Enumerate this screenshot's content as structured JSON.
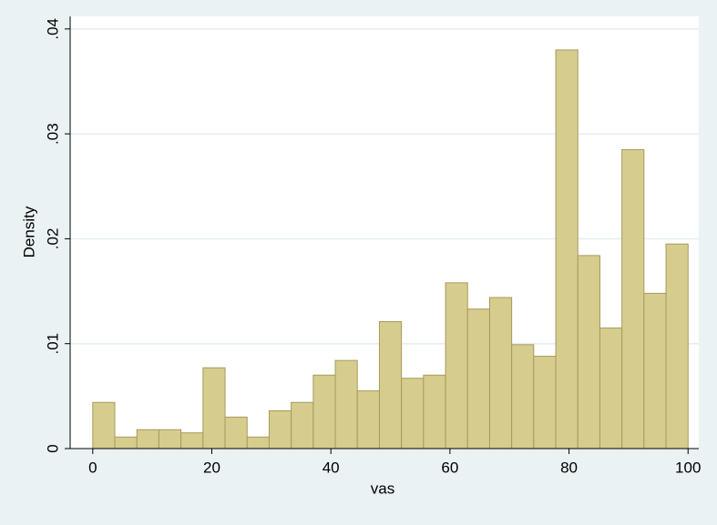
{
  "chart_data": {
    "type": "histogram",
    "x_label": "vas",
    "y_label": "Density",
    "bins": [
      0,
      3.7,
      7.41,
      11.11,
      14.81,
      18.52,
      22.22,
      25.93,
      29.63,
      33.33,
      37.04,
      40.74,
      44.44,
      48.15,
      51.85,
      55.56,
      59.26,
      62.96,
      66.67,
      70.37,
      74.07,
      77.78,
      81.48,
      85.19,
      88.89,
      92.59,
      96.3,
      100
    ],
    "values": [
      0.0044,
      0.0011,
      0.0018,
      0.0018,
      0.0015,
      0.0077,
      0.003,
      0.0011,
      0.0036,
      0.0044,
      0.007,
      0.0084,
      0.0055,
      0.0121,
      0.0067,
      0.007,
      0.0158,
      0.0133,
      0.0144,
      0.0099,
      0.0088,
      0.038,
      0.0184,
      0.0115,
      0.0285,
      0.0148,
      0.0195
    ],
    "color": "#d6cc8e",
    "edge_color": "#a89a5c",
    "xlim": [
      -3.8,
      101.8
    ],
    "ylim": [
      0,
      0.0412
    ],
    "xticks": [
      0,
      20,
      40,
      60,
      80,
      100
    ],
    "yticks": [
      0,
      {
        "value": 0.01,
        "label": ".01"
      },
      {
        "value": 0.02,
        "label": ".02"
      },
      {
        "value": 0.03,
        "label": ".03"
      },
      {
        "value": 0.04,
        "label": ".04"
      }
    ],
    "grid": true
  }
}
